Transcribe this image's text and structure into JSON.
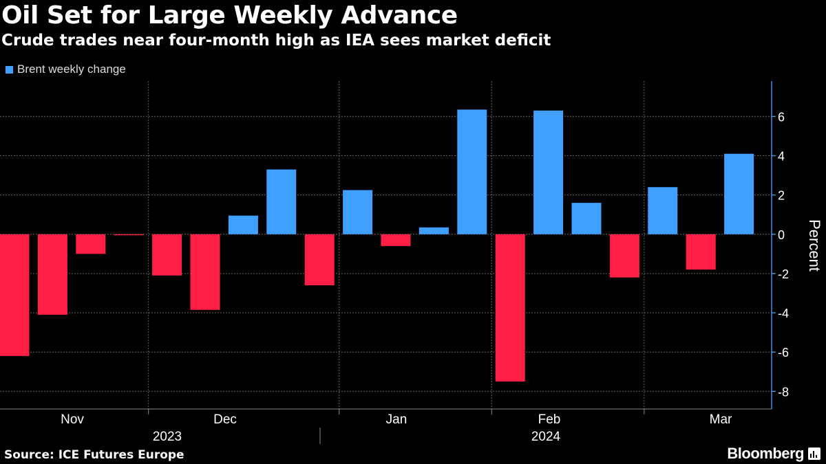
{
  "title": "Oil Set for Large Weekly Advance",
  "subtitle": "Crude trades near four-month high as IEA sees market deficit",
  "source": "Source: ICE Futures Europe",
  "brand": "Bloomberg",
  "colors": {
    "positive": "#3fa0ff",
    "negative": "#ff1f44",
    "grid": "#666666",
    "axis": "#4a90d9"
  },
  "chart_data": {
    "type": "bar",
    "title": "Oil Set for Large Weekly Advance",
    "legend": [
      {
        "name": "Brent weekly change",
        "color": "#3fa0ff"
      }
    ],
    "legend_position": "top-left",
    "ylabel": "Percent",
    "ylim": [
      -8.9,
      7.8
    ],
    "yticks": [
      6,
      4,
      2,
      0,
      -2,
      -4,
      -6,
      -8
    ],
    "ytick_labels": [
      "6",
      "4",
      "2",
      "0",
      "-2",
      "-4",
      "-6",
      "-8"
    ],
    "series": [
      {
        "name": "Brent weekly change",
        "values": [
          -6.2,
          -4.1,
          -1.0,
          -0.05,
          -2.1,
          -3.85,
          0.95,
          3.3,
          -2.6,
          2.25,
          -0.6,
          0.35,
          6.35,
          -7.5,
          6.3,
          1.6,
          -2.2,
          2.4,
          -1.8,
          4.1
        ]
      }
    ],
    "month_labels": [
      "Nov",
      "Dec",
      "Jan",
      "Feb",
      "Mar"
    ],
    "year_labels": [
      "2023",
      "2024"
    ],
    "grid": true
  }
}
